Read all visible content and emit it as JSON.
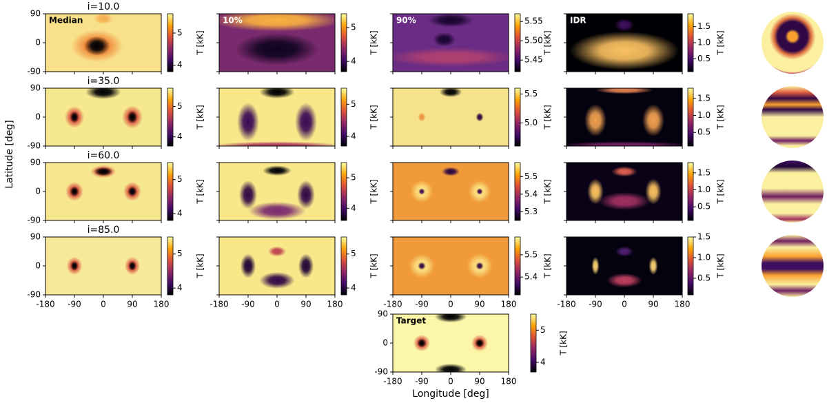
{
  "figure": {
    "ylabel": "Latitude [deg]",
    "xlabel": "Longitude [deg]",
    "xlim": [
      -180,
      180
    ],
    "ylim": [
      -90,
      90
    ],
    "xticks": [
      -180,
      -90,
      0,
      90,
      180
    ],
    "yticks": [
      -90,
      0,
      90
    ],
    "colorbar_label": "T [kK]",
    "columns": [
      "Median",
      "10%",
      "90%",
      "IDR"
    ],
    "rows": [
      {
        "title": "i=10.0",
        "colorbars": [
          {
            "lim": [
              3.8,
              5.6
            ],
            "ticks": [
              4,
              5
            ]
          },
          {
            "lim": [
              3.7,
              5.4
            ],
            "ticks": [
              4,
              5
            ]
          },
          {
            "lim": [
              5.42,
              5.57
            ],
            "ticks": [
              5.45,
              {
                "value": 5.5,
                "label": "5.50"
              },
              5.55
            ]
          },
          {
            "lim": [
              0.1,
              1.9
            ],
            "ticks": [
              0.5,
              {
                "value": 1,
                "label": "1.0"
              },
              1.5
            ]
          }
        ]
      },
      {
        "title": "i=35.0",
        "colorbars": [
          {
            "lim": [
              3.7,
              5.6
            ],
            "ticks": [
              4,
              5
            ]
          },
          {
            "lim": [
              3.7,
              5.5
            ],
            "ticks": [
              4,
              5
            ]
          },
          {
            "lim": [
              4.6,
              5.6
            ],
            "ticks": [
              {
                "value": 5,
                "label": "5.0"
              },
              5.5
            ]
          },
          {
            "lim": [
              0.1,
              1.8
            ],
            "ticks": [
              0.5,
              {
                "value": 1,
                "label": "1.0"
              },
              1.5
            ]
          }
        ]
      },
      {
        "title": "i=60.0",
        "colorbars": [
          {
            "lim": [
              3.8,
              5.5
            ],
            "ticks": [
              4,
              5
            ]
          },
          {
            "lim": [
              3.6,
              5.5
            ],
            "ticks": [
              4,
              5
            ]
          },
          {
            "lim": [
              5.25,
              5.58
            ],
            "ticks": [
              5.3,
              5.4,
              5.5
            ]
          },
          {
            "lim": [
              0.1,
              1.8
            ],
            "ticks": [
              0.5,
              {
                "value": 1,
                "label": "1.0"
              },
              1.5
            ]
          }
        ]
      },
      {
        "title": "i=85.0",
        "colorbars": [
          {
            "lim": [
              3.8,
              5.5
            ],
            "ticks": [
              4,
              5
            ]
          },
          {
            "lim": [
              3.8,
              5.5
            ],
            "ticks": [
              4,
              5
            ]
          },
          {
            "lim": [
              5.32,
              5.58
            ],
            "ticks": [
              5.4,
              5.5
            ]
          },
          {
            "lim": [
              0.1,
              1.5
            ],
            "ticks": [
              0.5,
              {
                "value": 1,
                "label": "1.0"
              },
              1.5
            ]
          }
        ]
      }
    ],
    "target": {
      "label": "Target",
      "colorbar": {
        "lim": [
          3.7,
          5.5
        ],
        "ticks": [
          4,
          5
        ]
      }
    }
  }
}
